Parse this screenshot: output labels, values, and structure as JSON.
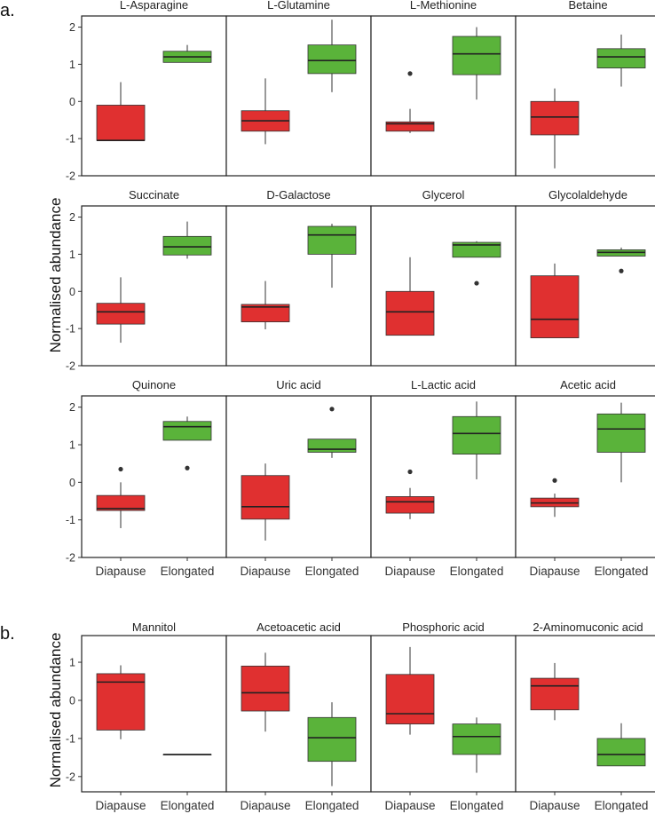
{
  "chart_data": [
    {
      "panel": "a.",
      "type": "boxplot",
      "ylabel": "Normalised abundance",
      "ylim": [
        -2,
        2.3
      ],
      "yticks": [
        -2,
        -1,
        0,
        1,
        2
      ],
      "categories": [
        "Diapause",
        "Elongated"
      ],
      "colors": {
        "Diapause": "#e03030",
        "Elongated": "#5ab33a"
      },
      "rows": [
        [
          {
            "title": "L-Asparagine",
            "boxes": [
              {
                "group": "Diapause",
                "min": -1.05,
                "q1": -1.05,
                "median": -1.05,
                "q3": -0.1,
                "max": 0.52,
                "outliers": []
              },
              {
                "group": "Elongated",
                "min": 1.05,
                "q1": 1.05,
                "median": 1.2,
                "q3": 1.35,
                "max": 1.52,
                "outliers": []
              }
            ]
          },
          {
            "title": "L-Glutamine",
            "boxes": [
              {
                "group": "Diapause",
                "min": -1.15,
                "q1": -0.8,
                "median": -0.52,
                "q3": -0.25,
                "max": 0.62,
                "outliers": []
              },
              {
                "group": "Elongated",
                "min": 0.25,
                "q1": 0.75,
                "median": 1.1,
                "q3": 1.52,
                "max": 2.2,
                "outliers": []
              }
            ]
          },
          {
            "title": "L-Methionine",
            "boxes": [
              {
                "group": "Diapause",
                "min": -0.85,
                "q1": -0.8,
                "median": -0.6,
                "q3": -0.55,
                "max": -0.2,
                "outliers": [
                  0.75
                ]
              },
              {
                "group": "Elongated",
                "min": 0.05,
                "q1": 0.72,
                "median": 1.28,
                "q3": 1.75,
                "max": 2.0,
                "outliers": []
              }
            ]
          },
          {
            "title": "Betaine",
            "boxes": [
              {
                "group": "Diapause",
                "min": -1.8,
                "q1": -0.9,
                "median": -0.42,
                "q3": 0.0,
                "max": 0.35,
                "outliers": []
              },
              {
                "group": "Elongated",
                "min": 0.4,
                "q1": 0.9,
                "median": 1.2,
                "q3": 1.42,
                "max": 1.8,
                "outliers": []
              }
            ]
          }
        ],
        [
          {
            "title": "Succinate",
            "boxes": [
              {
                "group": "Diapause",
                "min": -1.38,
                "q1": -0.88,
                "median": -0.55,
                "q3": -0.32,
                "max": 0.38,
                "outliers": []
              },
              {
                "group": "Elongated",
                "min": 0.88,
                "q1": 0.98,
                "median": 1.2,
                "q3": 1.48,
                "max": 1.88,
                "outliers": []
              }
            ]
          },
          {
            "title": "D-Galactose",
            "boxes": [
              {
                "group": "Diapause",
                "min": -1.02,
                "q1": -0.82,
                "median": -0.42,
                "q3": -0.35,
                "max": 0.28,
                "outliers": []
              },
              {
                "group": "Elongated",
                "min": 0.1,
                "q1": 1.0,
                "median": 1.52,
                "q3": 1.75,
                "max": 1.82,
                "outliers": []
              }
            ]
          },
          {
            "title": "Glycerol",
            "boxes": [
              {
                "group": "Diapause",
                "min": -1.18,
                "q1": -1.18,
                "median": -0.55,
                "q3": 0.0,
                "max": 0.92,
                "outliers": []
              },
              {
                "group": "Elongated",
                "min": 0.92,
                "q1": 0.92,
                "median": 1.25,
                "q3": 1.32,
                "max": 1.35,
                "outliers": [
                  0.22
                ]
              }
            ]
          },
          {
            "title": "Glycolaldehyde",
            "boxes": [
              {
                "group": "Diapause",
                "min": -1.25,
                "q1": -1.25,
                "median": -0.75,
                "q3": 0.42,
                "max": 0.75,
                "outliers": []
              },
              {
                "group": "Elongated",
                "min": 0.95,
                "q1": 0.95,
                "median": 1.05,
                "q3": 1.12,
                "max": 1.18,
                "outliers": [
                  0.55
                ]
              }
            ]
          }
        ],
        [
          {
            "title": "Quinone",
            "boxes": [
              {
                "group": "Diapause",
                "min": -1.22,
                "q1": -0.75,
                "median": -0.7,
                "q3": -0.35,
                "max": 0.0,
                "outliers": [
                  0.35
                ]
              },
              {
                "group": "Elongated",
                "min": 1.12,
                "q1": 1.12,
                "median": 1.48,
                "q3": 1.62,
                "max": 1.75,
                "outliers": [
                  0.38
                ]
              }
            ]
          },
          {
            "title": "Uric acid",
            "boxes": [
              {
                "group": "Diapause",
                "min": -1.55,
                "q1": -0.98,
                "median": -0.65,
                "q3": 0.18,
                "max": 0.5,
                "outliers": []
              },
              {
                "group": "Elongated",
                "min": 0.65,
                "q1": 0.8,
                "median": 0.88,
                "q3": 1.15,
                "max": 1.15,
                "outliers": [
                  1.95
                ]
              }
            ]
          },
          {
            "title": "L-Lactic acid",
            "boxes": [
              {
                "group": "Diapause",
                "min": -0.98,
                "q1": -0.82,
                "median": -0.52,
                "q3": -0.38,
                "max": -0.15,
                "outliers": [
                  0.28
                ]
              },
              {
                "group": "Elongated",
                "min": 0.08,
                "q1": 0.75,
                "median": 1.3,
                "q3": 1.75,
                "max": 2.15,
                "outliers": []
              }
            ]
          },
          {
            "title": "Acetic acid",
            "boxes": [
              {
                "group": "Diapause",
                "min": -0.92,
                "q1": -0.65,
                "median": -0.55,
                "q3": -0.42,
                "max": -0.3,
                "outliers": [
                  0.05
                ]
              },
              {
                "group": "Elongated",
                "min": 0.0,
                "q1": 0.8,
                "median": 1.42,
                "q3": 1.82,
                "max": 2.12,
                "outliers": []
              }
            ]
          }
        ]
      ]
    },
    {
      "panel": "b.",
      "type": "boxplot",
      "ylabel": "Normalised abundance",
      "ylim": [
        -2.4,
        1.7
      ],
      "yticks": [
        -2,
        -1,
        0,
        1
      ],
      "categories": [
        "Diapause",
        "Elongated"
      ],
      "colors": {
        "Diapause": "#e03030",
        "Elongated": "#5ab33a"
      },
      "rows": [
        [
          {
            "title": "Mannitol",
            "boxes": [
              {
                "group": "Diapause",
                "min": -1.02,
                "q1": -0.78,
                "median": 0.48,
                "q3": 0.7,
                "max": 0.92,
                "outliers": []
              },
              {
                "group": "Elongated",
                "min": -1.42,
                "q1": -1.42,
                "median": -1.42,
                "q3": -1.42,
                "max": -1.42,
                "outliers": []
              }
            ]
          },
          {
            "title": "Acetoacetic acid",
            "boxes": [
              {
                "group": "Diapause",
                "min": -0.82,
                "q1": -0.28,
                "median": 0.2,
                "q3": 0.9,
                "max": 1.25,
                "outliers": []
              },
              {
                "group": "Elongated",
                "min": -2.25,
                "q1": -1.6,
                "median": -0.98,
                "q3": -0.45,
                "max": -0.05,
                "outliers": []
              }
            ]
          },
          {
            "title": "Phosphoric acid",
            "boxes": [
              {
                "group": "Diapause",
                "min": -0.9,
                "q1": -0.62,
                "median": -0.35,
                "q3": 0.68,
                "max": 1.4,
                "outliers": []
              },
              {
                "group": "Elongated",
                "min": -1.9,
                "q1": -1.42,
                "median": -0.95,
                "q3": -0.62,
                "max": -0.45,
                "outliers": []
              }
            ]
          },
          {
            "title": "2-Aminomuconic acid",
            "boxes": [
              {
                "group": "Diapause",
                "min": -0.52,
                "q1": -0.25,
                "median": 0.38,
                "q3": 0.58,
                "max": 0.98,
                "outliers": []
              },
              {
                "group": "Elongated",
                "min": -1.72,
                "q1": -1.72,
                "median": -1.42,
                "q3": -1.0,
                "max": -0.6,
                "outliers": []
              }
            ]
          }
        ]
      ]
    }
  ]
}
